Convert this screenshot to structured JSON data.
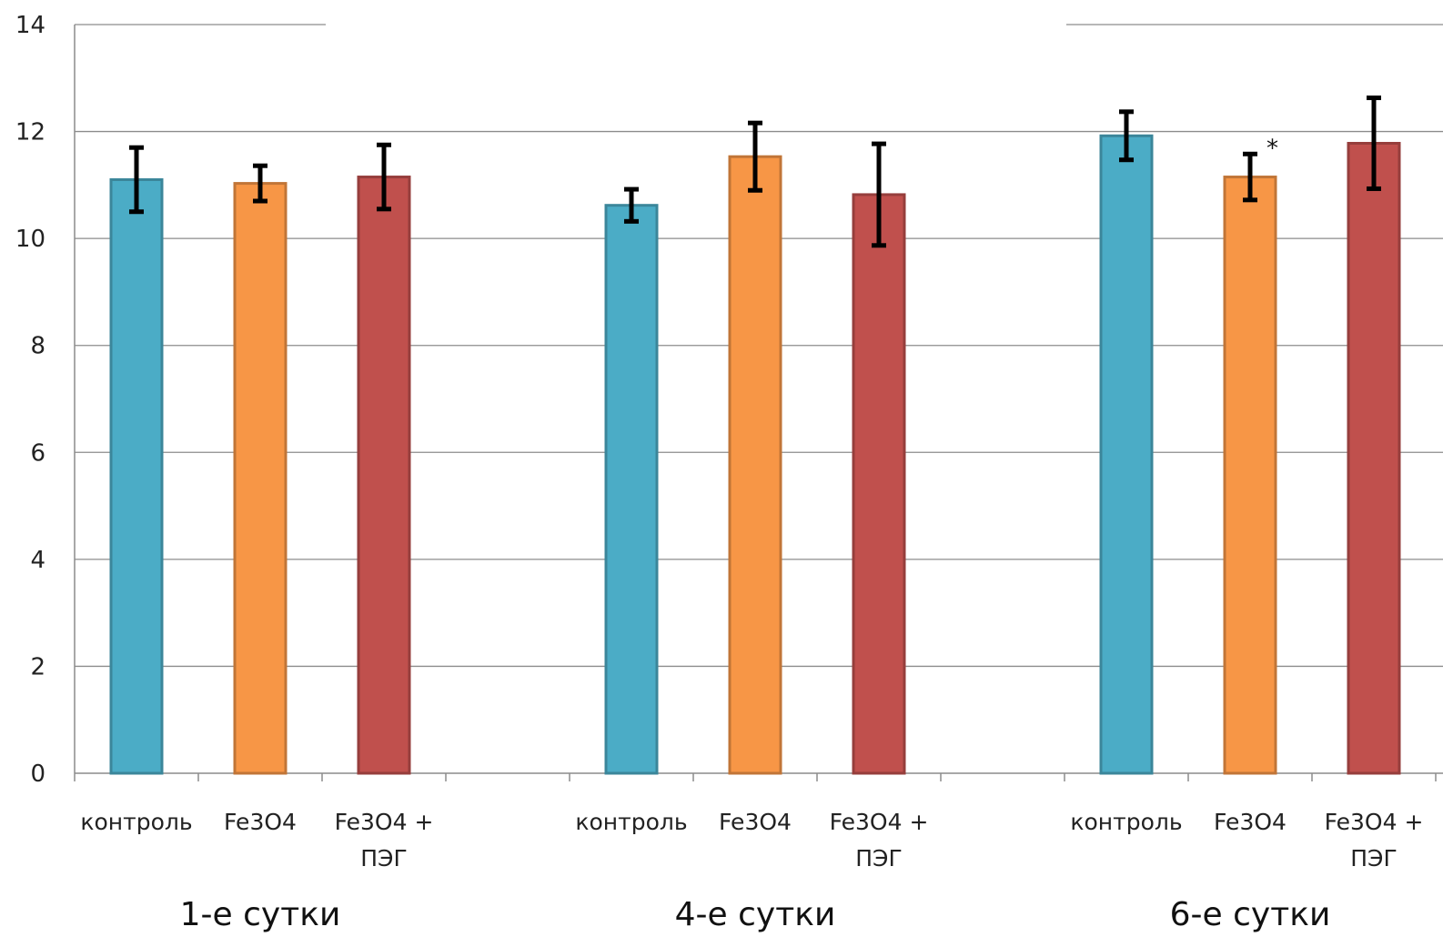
{
  "chart_data": {
    "type": "bar",
    "ylim": [
      0,
      14
    ],
    "yticks": [
      0,
      2,
      4,
      6,
      8,
      10,
      12,
      14
    ],
    "grid": true,
    "groups": [
      {
        "label": "1-е сутки",
        "bars": [
          {
            "category": "контроль",
            "value": 11.1,
            "error": 0.6,
            "color": "#4bacc6",
            "annotation": ""
          },
          {
            "category": "Fe3O4",
            "value": 11.03,
            "error": 0.33,
            "color": "#f79646",
            "annotation": ""
          },
          {
            "category": "Fe3O4 + ПЭГ",
            "value": 11.15,
            "error": 0.6,
            "color": "#c0504d",
            "annotation": ""
          }
        ]
      },
      {
        "label": "4-е сутки",
        "bars": [
          {
            "category": "контроль",
            "value": 10.62,
            "error": 0.3,
            "color": "#4bacc6",
            "annotation": ""
          },
          {
            "category": "Fe3O4",
            "value": 11.53,
            "error": 0.63,
            "color": "#f79646",
            "annotation": ""
          },
          {
            "category": "Fe3O4 + ПЭГ",
            "value": 10.82,
            "error": 0.95,
            "color": "#c0504d",
            "annotation": ""
          }
        ]
      },
      {
        "label": "6-е сутки",
        "bars": [
          {
            "category": "контроль",
            "value": 11.92,
            "error": 0.45,
            "color": "#4bacc6",
            "annotation": ""
          },
          {
            "category": "Fe3O4",
            "value": 11.15,
            "error": 0.43,
            "color": "#f79646",
            "annotation": "*"
          },
          {
            "category": "Fe3O4 + ПЭГ",
            "value": 11.78,
            "error": 0.85,
            "color": "#c0504d",
            "annotation": ""
          }
        ]
      }
    ]
  }
}
